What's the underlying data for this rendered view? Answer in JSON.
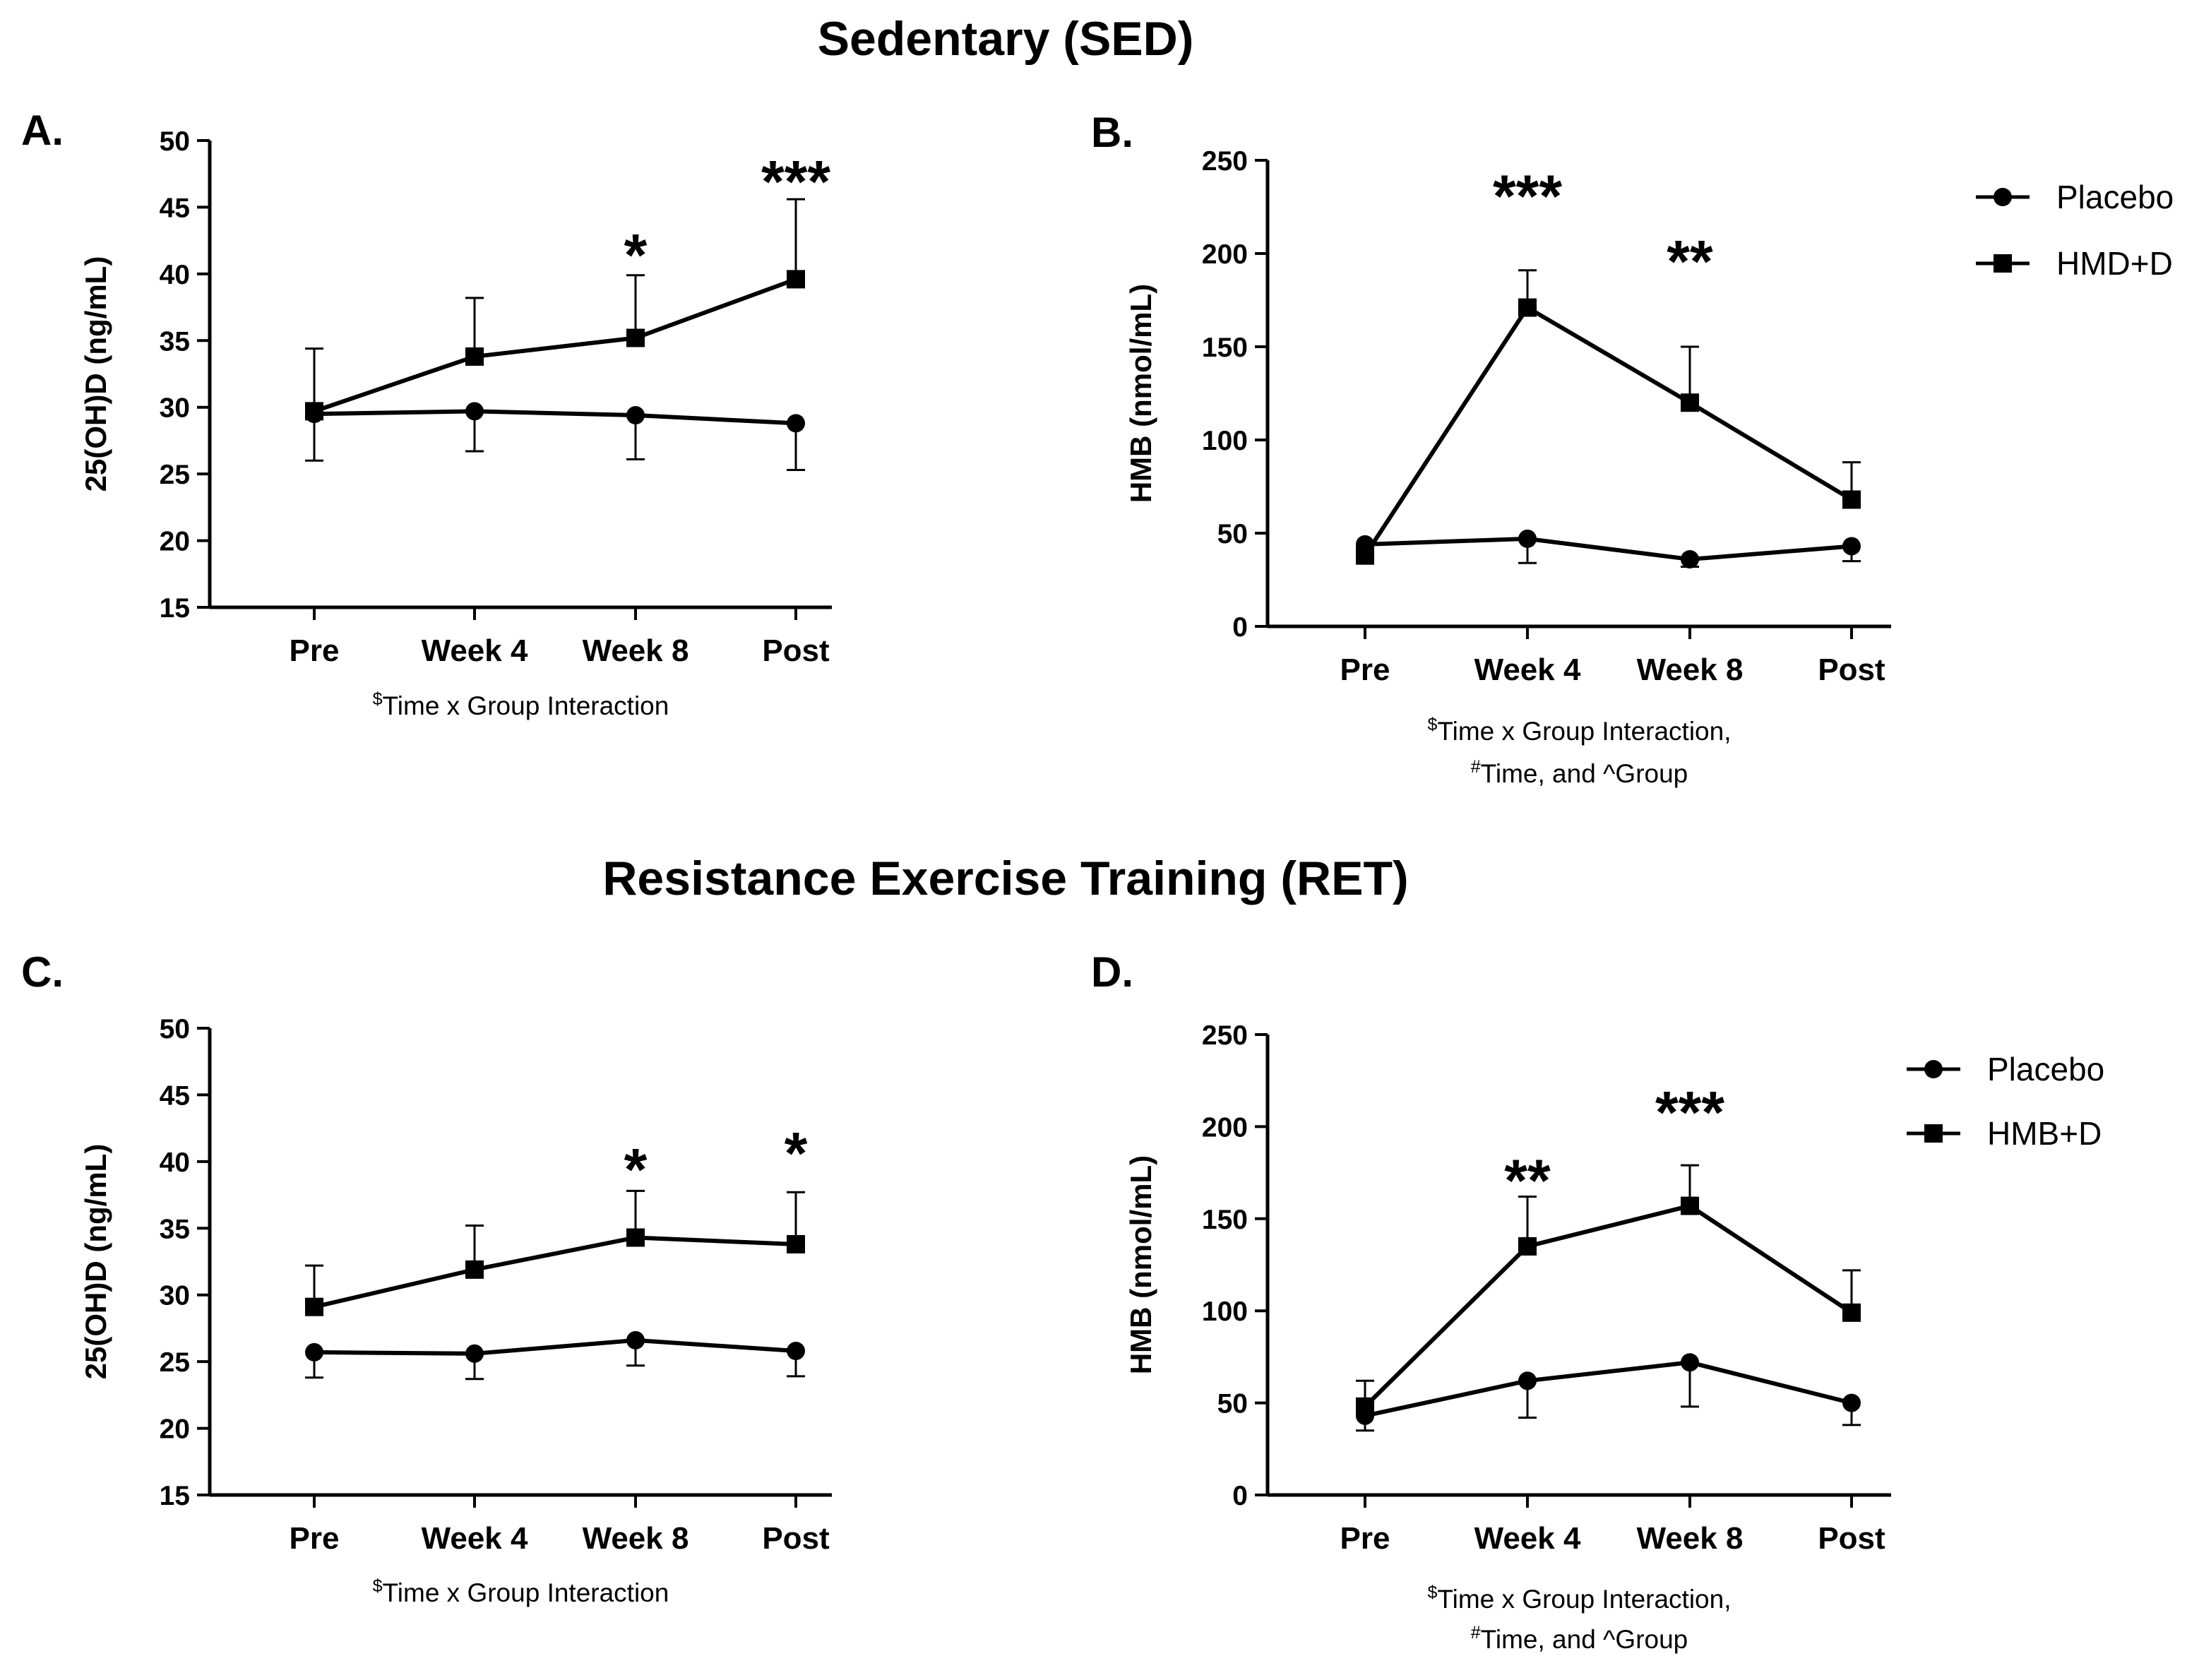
{
  "figure": {
    "section_titles": [
      "Sedentary (SED)",
      "Resistance Exercise Training (RET)"
    ]
  },
  "chart_data": [
    {
      "panel": "A.",
      "type": "line",
      "section": "Sedentary (SED)",
      "ylabel": "25(OH)D (ng/mL)",
      "ylim": [
        15,
        50
      ],
      "yticks": [
        15,
        20,
        25,
        30,
        35,
        40,
        45,
        50
      ],
      "categories": [
        "Pre",
        "Week 4",
        "Week 8",
        "Post"
      ],
      "note": [
        {
          "sup": "$",
          "text": "Time x Group Interaction"
        }
      ],
      "legend": null,
      "series": [
        {
          "name": "Placebo",
          "marker": "circle",
          "values": [
            29.5,
            29.7,
            29.4,
            28.8
          ],
          "error_lower": [
            3.5,
            3.0,
            3.3,
            3.5
          ],
          "error_upper": [
            0,
            0,
            0,
            0
          ]
        },
        {
          "name": "HMD+D",
          "marker": "square",
          "values": [
            29.7,
            33.8,
            35.2,
            39.6
          ],
          "error_lower": [
            0,
            0,
            0,
            0
          ],
          "error_upper": [
            4.7,
            4.4,
            4.7,
            6.0
          ]
        }
      ],
      "significance": [
        {
          "category": "Week 8",
          "label": "*",
          "y": 42.0
        },
        {
          "category": "Post",
          "label": "***",
          "y": 47.5
        }
      ]
    },
    {
      "panel": "B.",
      "type": "line",
      "section": "Sedentary (SED)",
      "ylabel": "HMB (nmol/mL)",
      "ylim": [
        0,
        250
      ],
      "yticks": [
        0,
        50,
        100,
        150,
        200,
        250
      ],
      "categories": [
        "Pre",
        "Week 4",
        "Week 8",
        "Post"
      ],
      "note": [
        {
          "sup": "$",
          "text": "Time x Group Interaction,"
        },
        {
          "sup": "#",
          "text": "Time, and ^Group"
        }
      ],
      "legend": {
        "position": "right",
        "entries": [
          "Placebo",
          "HMD+D"
        ]
      },
      "series": [
        {
          "name": "Placebo",
          "marker": "circle",
          "values": [
            44,
            47,
            36,
            43
          ],
          "error_lower": [
            0,
            13,
            4,
            8
          ],
          "error_upper": [
            0,
            0,
            0,
            0
          ]
        },
        {
          "name": "HMD+D",
          "marker": "square",
          "values": [
            38,
            171,
            120,
            68
          ],
          "error_lower": [
            0,
            0,
            0,
            0
          ],
          "error_upper": [
            0,
            20,
            30,
            20
          ]
        }
      ],
      "significance": [
        {
          "category": "Week 4",
          "label": "***",
          "y": 235
        },
        {
          "category": "Week 8",
          "label": "**",
          "y": 200
        }
      ]
    },
    {
      "panel": "C.",
      "type": "line",
      "section": "Resistance Exercise Training (RET)",
      "ylabel": "25(OH)D (ng/mL)",
      "ylim": [
        15,
        50
      ],
      "yticks": [
        15,
        20,
        25,
        30,
        35,
        40,
        45,
        50
      ],
      "categories": [
        "Pre",
        "Week 4",
        "Week 8",
        "Post"
      ],
      "note": [
        {
          "sup": "$",
          "text": "Time x Group Interaction"
        }
      ],
      "legend": null,
      "series": [
        {
          "name": "Placebo",
          "marker": "circle",
          "values": [
            25.7,
            25.6,
            26.6,
            25.8
          ],
          "error_lower": [
            1.9,
            1.9,
            1.9,
            1.9
          ],
          "error_upper": [
            0,
            0,
            0,
            0
          ]
        },
        {
          "name": "HMD+D",
          "marker": "square",
          "values": [
            29.1,
            31.9,
            34.3,
            33.8
          ],
          "error_lower": [
            0,
            0,
            0,
            0
          ],
          "error_upper": [
            3.1,
            3.3,
            3.5,
            3.9
          ]
        }
      ],
      "significance": [
        {
          "category": "Week 8",
          "label": "*",
          "y": 40.0
        },
        {
          "category": "Post",
          "label": "*",
          "y": 41.2
        }
      ]
    },
    {
      "panel": "D.",
      "type": "line",
      "section": "Resistance Exercise Training (RET)",
      "ylabel": "HMB (nmol/mL)",
      "ylim": [
        0,
        250
      ],
      "yticks": [
        0,
        50,
        100,
        150,
        200,
        250
      ],
      "categories": [
        "Pre",
        "Week 4",
        "Week 8",
        "Post"
      ],
      "note": [
        {
          "sup": "$",
          "text": "Time x Group Interaction,"
        },
        {
          "sup": "#",
          "text": "Time, and ^Group"
        }
      ],
      "legend": {
        "position": "right",
        "entries": [
          "Placebo",
          "HMB+D"
        ]
      },
      "series": [
        {
          "name": "Placebo",
          "marker": "circle",
          "values": [
            43,
            62,
            72,
            50
          ],
          "error_lower": [
            8,
            20,
            24,
            12
          ],
          "error_upper": [
            0,
            0,
            0,
            0
          ]
        },
        {
          "name": "HMB+D",
          "marker": "square",
          "values": [
            48,
            135,
            157,
            99
          ],
          "error_lower": [
            0,
            0,
            0,
            0
          ],
          "error_upper": [
            14,
            27,
            22,
            23
          ]
        }
      ],
      "significance": [
        {
          "category": "Week 4",
          "label": "**",
          "y": 175
        },
        {
          "category": "Week 8",
          "label": "***",
          "y": 212
        }
      ]
    }
  ]
}
